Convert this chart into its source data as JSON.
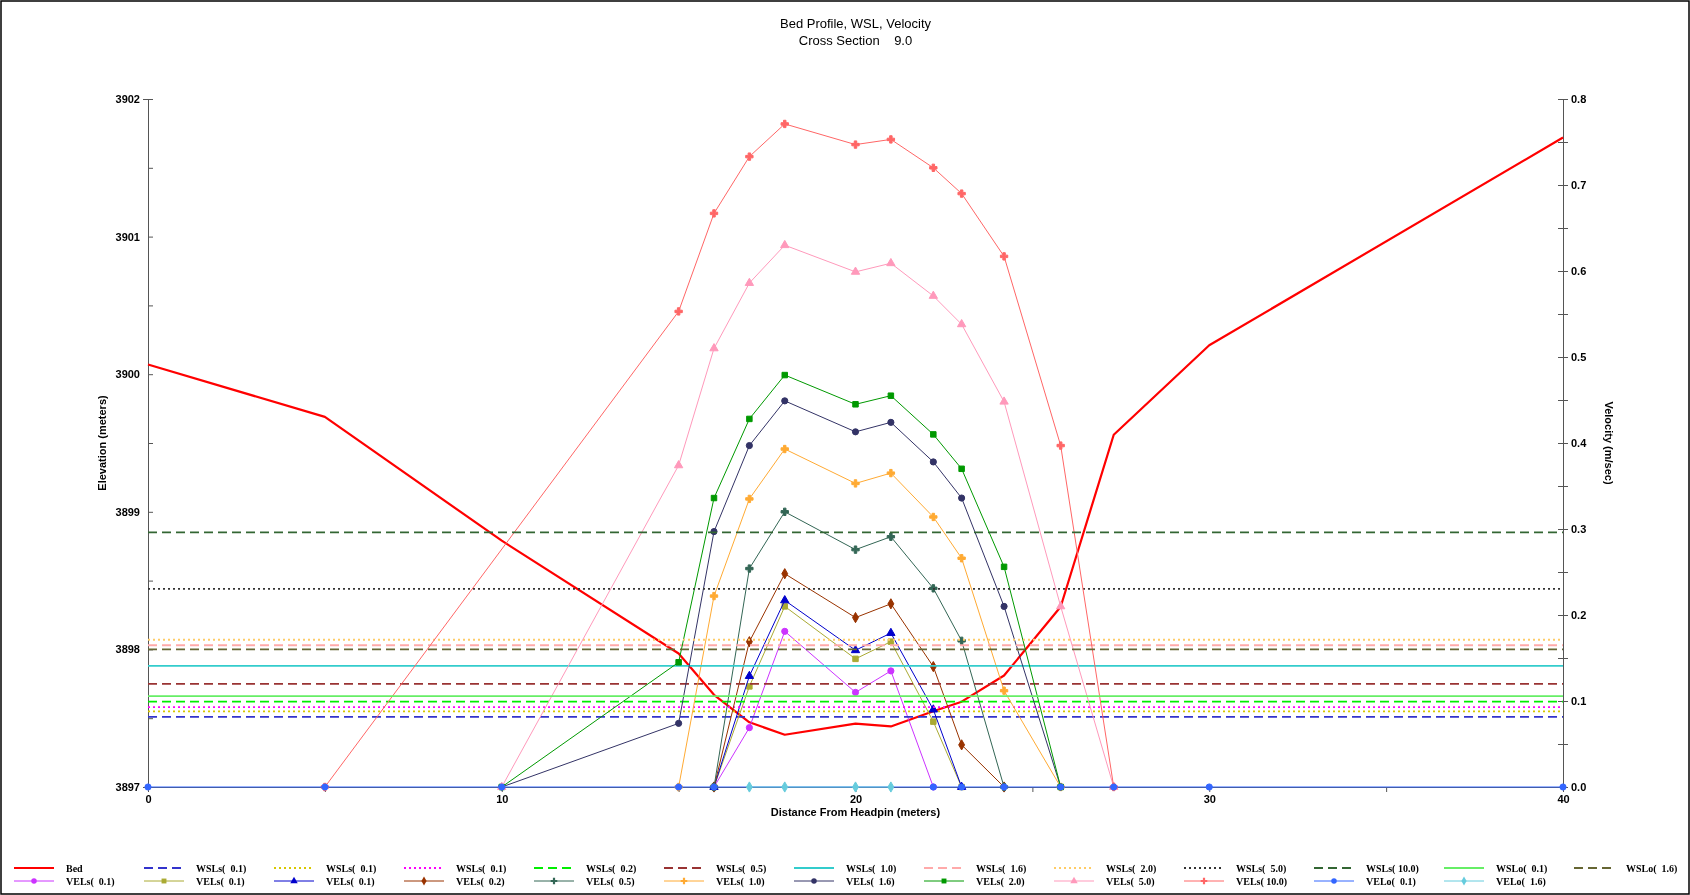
{
  "chart_data": {
    "type": "line",
    "title": "Bed Profile, WSL, Velocity",
    "subtitle": "Cross Section    9.0",
    "xlabel": "Distance From Headpin (meters)",
    "ylabel": "Elevation (meters)",
    "y2label": "Velocity (m/sec)",
    "xlim": [
      0,
      40
    ],
    "xticks": [
      0,
      {
        "value": 5,
        "label": null
      },
      10,
      {
        "value": 15,
        "label": null
      },
      20,
      {
        "value": 25,
        "label": null
      },
      30,
      {
        "value": 35,
        "label": null
      },
      40
    ],
    "ylim": [
      3897,
      3902
    ],
    "yticks": [
      3897,
      {
        "value": 3897.5,
        "label": null
      },
      3898,
      {
        "value": 3898.5,
        "label": null
      },
      3899,
      {
        "value": 3899.5,
        "label": null
      },
      3900,
      {
        "value": 3900.5,
        "label": null
      },
      3901,
      {
        "value": 3901.5,
        "label": null
      },
      3902
    ],
    "y2lim": [
      0,
      0.8
    ],
    "y2ticks": [
      {
        "value": 0,
        "label": "0.0"
      },
      {
        "value": 0.05,
        "label": null
      },
      0.1,
      {
        "value": 0.15,
        "label": null
      },
      0.2,
      {
        "value": 0.25,
        "label": null
      },
      0.3,
      {
        "value": 0.35,
        "label": null
      },
      0.4,
      {
        "value": 0.45,
        "label": null
      },
      0.5,
      {
        "value": 0.55,
        "label": null
      },
      0.6,
      {
        "value": 0.65,
        "label": null
      },
      0.7,
      {
        "value": 0.75,
        "label": null
      },
      0.8
    ],
    "grid": false,
    "legend": "bottom",
    "series": [
      {
        "name": "Bed",
        "color": "#ff0000",
        "line_style": "solid",
        "marker": "none",
        "x": [
          0,
          5,
          10,
          15,
          16,
          17,
          18,
          20,
          21,
          22.2,
          23,
          24.2,
          25.8,
          27.3,
          30,
          40
        ],
        "values": [
          3900.07,
          3899.69,
          3898.79,
          3897.97,
          3897.67,
          3897.47,
          3897.38,
          3897.46,
          3897.44,
          3897.55,
          3897.62,
          3897.81,
          3898.31,
          3899.56,
          3900.21,
          3901.72
        ]
      },
      {
        "name": "VELs(  0.1)",
        "color": "#cc33ff",
        "line_style": "solid",
        "marker": "circle",
        "axis": "y2",
        "x": [
          16,
          17,
          18,
          20,
          21,
          22.2
        ],
        "values": [
          0,
          0.069,
          0.181,
          0.11,
          0.135,
          0
        ]
      },
      {
        "name": "WSLs(  0.1)",
        "color": "#3333cc",
        "line_style": "dashed",
        "marker": "none",
        "x": [
          0,
          40
        ],
        "values": [
          3897.51,
          3897.51
        ]
      },
      {
        "name": "VELs(  0.1)",
        "color": "#aaaa33",
        "line_style": "solid",
        "marker": "square",
        "axis": "y2",
        "x": [
          16,
          17,
          18,
          20,
          21,
          22.2,
          23
        ],
        "values": [
          0,
          0.117,
          0.21,
          0.149,
          0.169,
          0.076,
          0
        ]
      },
      {
        "name": "WSLs(  0.1)",
        "color": "#d8c800",
        "line_style": "dotted",
        "marker": "none",
        "x": [
          0,
          40
        ],
        "values": [
          3897.55,
          3897.55
        ]
      },
      {
        "name": "VELs(  0.1)",
        "color": "#0000cc",
        "line_style": "solid",
        "marker": "triangle",
        "axis": "y2",
        "x": [
          16,
          17,
          18,
          20,
          21,
          22.2,
          23
        ],
        "values": [
          0,
          0.129,
          0.217,
          0.159,
          0.179,
          0.09,
          0
        ]
      },
      {
        "name": "WSLs(  0.1)",
        "color": "#ff00ff",
        "line_style": "dotted",
        "marker": "none",
        "x": [
          0,
          40
        ],
        "values": [
          3897.58,
          3897.58
        ]
      },
      {
        "name": "VELs(  0.2)",
        "color": "#993300",
        "line_style": "solid",
        "marker": "diamond",
        "axis": "y2",
        "x": [
          16,
          17,
          18,
          20,
          21,
          22.2,
          23,
          24.2
        ],
        "values": [
          0,
          0.169,
          0.248,
          0.197,
          0.213,
          0.14,
          0.049,
          0
        ]
      },
      {
        "name": "WSLs(  0.2)",
        "color": "#00ee00",
        "line_style": "dashed",
        "marker": "none",
        "x": [
          0,
          40
        ],
        "values": [
          3897.62,
          3897.62
        ]
      },
      {
        "name": "VELs(  0.5)",
        "color": "#336655",
        "line_style": "solid",
        "marker": "cross",
        "axis": "y2",
        "x": [
          16,
          17,
          18,
          20,
          21,
          22.2,
          23,
          24.2
        ],
        "values": [
          0,
          0.254,
          0.32,
          0.276,
          0.291,
          0.231,
          0.17,
          0
        ]
      },
      {
        "name": "WSLs(  0.5)",
        "color": "#993333",
        "line_style": "dashed",
        "marker": "none",
        "x": [
          0,
          40
        ],
        "values": [
          3897.75,
          3897.75
        ]
      },
      {
        "name": "VELs(  1.0)",
        "color": "#ffaa33",
        "line_style": "solid",
        "marker": "cross",
        "axis": "y2",
        "x": [
          15,
          16,
          17,
          18,
          20,
          21,
          22.2,
          23,
          24.2,
          25.8
        ],
        "values": [
          0,
          0.222,
          0.335,
          0.393,
          0.353,
          0.365,
          0.314,
          0.266,
          0.112,
          0
        ]
      },
      {
        "name": "WSLs(  1.0)",
        "color": "#33cccc",
        "line_style": "solid",
        "marker": "none",
        "x": [
          0,
          40
        ],
        "values": [
          3897.88,
          3897.88
        ]
      },
      {
        "name": "VELs(  1.6)",
        "color": "#333366",
        "line_style": "solid",
        "marker": "circle",
        "axis": "y2",
        "x": [
          10,
          15,
          16,
          17,
          18,
          20,
          21,
          22.2,
          23,
          24.2,
          25.8
        ],
        "values": [
          0,
          0.074,
          0.297,
          0.397,
          0.449,
          0.413,
          0.424,
          0.378,
          0.336,
          0.21,
          0
        ]
      },
      {
        "name": "WSLs(  1.6)",
        "color": "#ffaaaa",
        "line_style": "dashed",
        "marker": "none",
        "x": [
          0,
          40
        ],
        "values": [
          3898.03,
          3898.03
        ]
      },
      {
        "name": "VELs(  2.0)",
        "color": "#009900",
        "line_style": "solid",
        "marker": "square",
        "axis": "y2",
        "x": [
          10,
          15,
          16,
          17,
          18,
          20,
          21,
          22.2,
          23,
          24.2,
          25.8
        ],
        "values": [
          0,
          0.145,
          0.336,
          0.428,
          0.479,
          0.445,
          0.455,
          0.41,
          0.37,
          0.256,
          0
        ]
      },
      {
        "name": "WSLs(  2.0)",
        "color": "#ffcc66",
        "line_style": "dotted",
        "marker": "none",
        "x": [
          0,
          40
        ],
        "values": [
          3898.07,
          3898.07
        ]
      },
      {
        "name": "VELs(  5.0)",
        "color": "#ff99bb",
        "line_style": "solid",
        "marker": "triangle",
        "axis": "y2",
        "x": [
          10,
          15,
          16,
          17,
          18,
          20,
          21,
          22.2,
          23,
          24.2,
          25.8,
          27.3
        ],
        "values": [
          0,
          0.374,
          0.51,
          0.586,
          0.63,
          0.599,
          0.609,
          0.571,
          0.538,
          0.448,
          0.21,
          0
        ]
      },
      {
        "name": "WSLs(  5.0)",
        "color": "#333333",
        "line_style": "dotted",
        "marker": "none",
        "x": [
          0,
          40
        ],
        "values": [
          3898.44,
          3898.44
        ]
      },
      {
        "name": "VELs( 10.0)",
        "color": "#ff6666",
        "line_style": "solid",
        "marker": "cross",
        "axis": "y2",
        "x": [
          5,
          15,
          16,
          17,
          18,
          20,
          21,
          22.2,
          23,
          24.2,
          25.8,
          27.3
        ],
        "values": [
          0,
          0.553,
          0.667,
          0.733,
          0.771,
          0.747,
          0.753,
          0.72,
          0.69,
          0.617,
          0.397,
          0
        ]
      },
      {
        "name": "WSLs( 10.0)",
        "color": "#336633",
        "line_style": "dashed",
        "marker": "none",
        "x": [
          0,
          40
        ],
        "values": [
          3898.85,
          3898.85
        ]
      },
      {
        "name": "VELo(  0.1)",
        "color": "#3366ff",
        "line_style": "solid",
        "marker": "circle",
        "axis": "y2",
        "x": [
          0,
          5,
          10,
          15,
          16,
          22.2,
          23,
          24.2,
          25.8,
          27.3,
          30,
          40
        ],
        "values": [
          0,
          0,
          0,
          0,
          0,
          0,
          0,
          0,
          0,
          0,
          0,
          0
        ]
      },
      {
        "name": "WSLo(  0.1)",
        "color": "#66ee66",
        "line_style": "solid",
        "marker": "none",
        "x": [
          0,
          40
        ],
        "values": [
          3897.66,
          3897.66
        ]
      },
      {
        "name": "VELo(  1.6)",
        "color": "#66ccdd",
        "line_style": "solid",
        "marker": "diamond",
        "axis": "y2",
        "x": [
          17,
          18,
          20,
          21
        ],
        "values": [
          0,
          0,
          0,
          0
        ]
      },
      {
        "name": "WSLo(  1.6)",
        "color": "#666633",
        "line_style": "dashed",
        "marker": "none",
        "x": [
          0,
          40
        ],
        "values": [
          3898.0,
          3898.0
        ]
      }
    ]
  }
}
